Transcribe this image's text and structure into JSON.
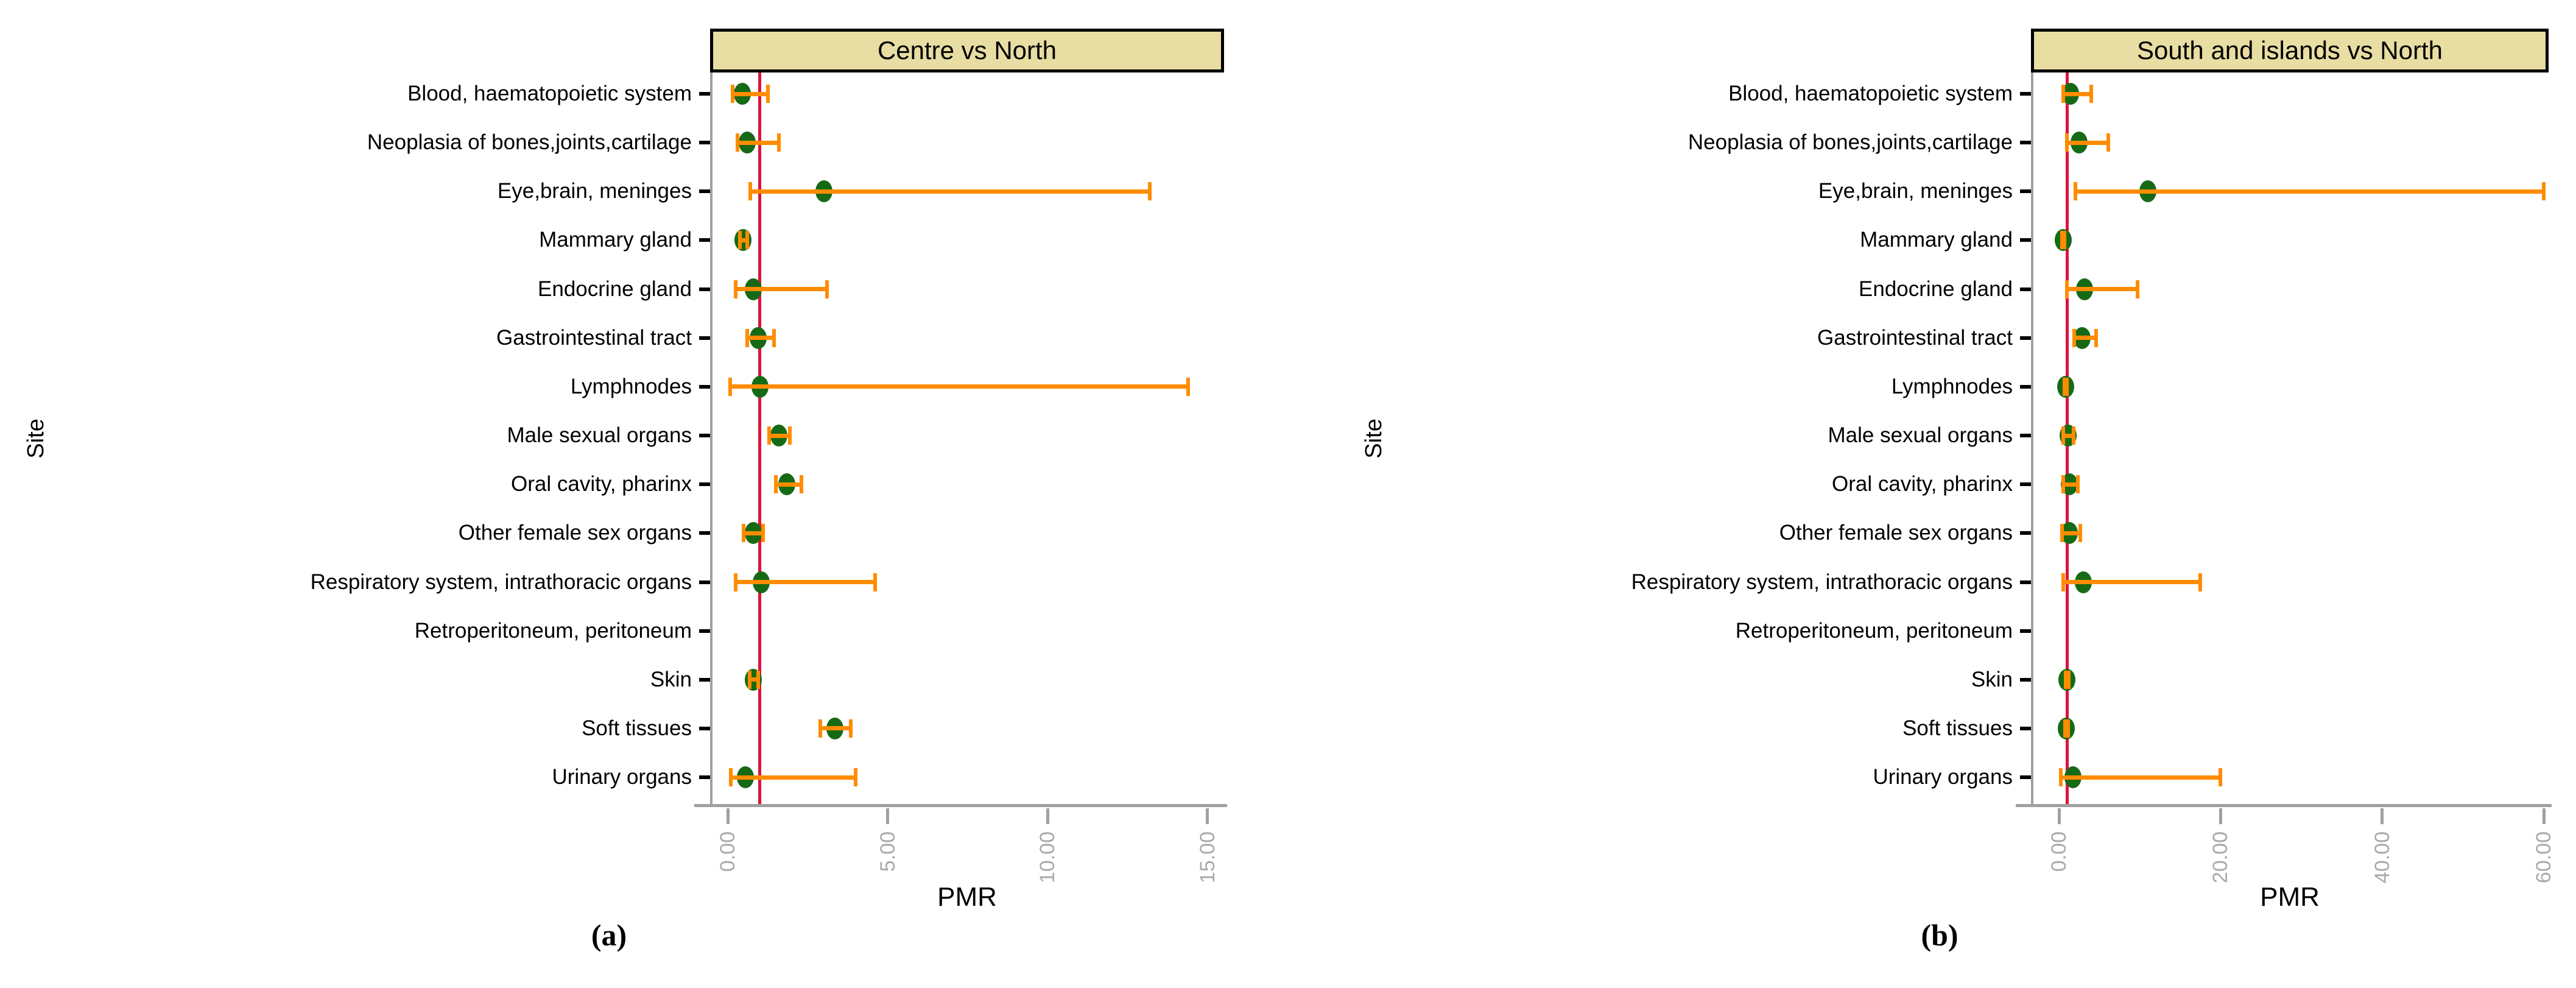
{
  "figure": {
    "x_axis_label": "PMR",
    "y_axis_label": "Site",
    "caption_a": "(a)",
    "caption_b": "(b)"
  },
  "colors": {
    "title_box_fill": "#e8dda2",
    "title_box_border": "#000000",
    "point_marker": "#166a16",
    "error_bar": "#ff8c00",
    "reference_line": "#dc143c",
    "axis_line": "#a0a0a0",
    "tick_label": "#a9a9a9",
    "text": "#000000"
  },
  "chart_data": [
    {
      "type": "scatter",
      "title": "Centre vs North",
      "caption": "(a)",
      "xlabel": "PMR",
      "ylabel": "Site",
      "xlim": [
        0,
        16
      ],
      "x_ticks": [
        0,
        5,
        10,
        15
      ],
      "x_tick_labels": [
        "0.00",
        "5.00",
        "10.00",
        "15.00"
      ],
      "refline_x": 1.0,
      "grid": false,
      "legend": null,
      "points": [
        {
          "site": "Blood, haematopoietic system",
          "pmr": 0.45,
          "ci_low": 0.15,
          "ci_high": 1.25
        },
        {
          "site": "Neoplasia of bones,joints,cartilage",
          "pmr": 0.6,
          "ci_low": 0.3,
          "ci_high": 1.6
        },
        {
          "site": "Eye,brain, meninges",
          "pmr": 3.0,
          "ci_low": 0.7,
          "ci_high": 13.2
        },
        {
          "site": "Mammary gland",
          "pmr": 0.48,
          "ci_low": 0.38,
          "ci_high": 0.6
        },
        {
          "site": "Endocrine gland",
          "pmr": 0.8,
          "ci_low": 0.25,
          "ci_high": 3.1
        },
        {
          "site": "Gastrointestinal tract",
          "pmr": 0.95,
          "ci_low": 0.6,
          "ci_high": 1.45
        },
        {
          "site": "Lymphnodes",
          "pmr": 1.0,
          "ci_low": 0.08,
          "ci_high": 14.4
        },
        {
          "site": "Male sexual organs",
          "pmr": 1.6,
          "ci_low": 1.3,
          "ci_high": 1.95
        },
        {
          "site": "Oral cavity, pharinx",
          "pmr": 1.85,
          "ci_low": 1.5,
          "ci_high": 2.3
        },
        {
          "site": "Other female sex organs",
          "pmr": 0.8,
          "ci_low": 0.5,
          "ci_high": 1.1
        },
        {
          "site": "Respiratory system, intrathoracic organs",
          "pmr": 1.05,
          "ci_low": 0.25,
          "ci_high": 4.6
        },
        {
          "site": "Retroperitoneum, peritoneum",
          "pmr": null,
          "ci_low": null,
          "ci_high": null
        },
        {
          "site": "Skin",
          "pmr": 0.8,
          "ci_low": 0.68,
          "ci_high": 0.95
        },
        {
          "site": "Soft tissues",
          "pmr": 3.35,
          "ci_low": 2.9,
          "ci_high": 3.85
        },
        {
          "site": "Urinary organs",
          "pmr": 0.55,
          "ci_low": 0.1,
          "ci_high": 4.0
        }
      ]
    },
    {
      "type": "scatter",
      "title": "South and islands vs North",
      "caption": "(b)",
      "xlabel": "PMR",
      "ylabel": "Site",
      "xlim": [
        0,
        64
      ],
      "x_ticks": [
        0,
        20,
        40,
        60
      ],
      "x_tick_labels": [
        "0.00",
        "20.00",
        "40.00",
        "60.00"
      ],
      "refline_x": 1.0,
      "grid": false,
      "legend": null,
      "points": [
        {
          "site": "Blood, haematopoietic system",
          "pmr": 1.4,
          "ci_low": 0.5,
          "ci_high": 4.0
        },
        {
          "site": "Neoplasia of bones,joints,cartilage",
          "pmr": 2.5,
          "ci_low": 1.0,
          "ci_high": 6.1
        },
        {
          "site": "Eye,brain, meninges",
          "pmr": 11.0,
          "ci_low": 2.0,
          "ci_high": 60.0
        },
        {
          "site": "Mammary gland",
          "pmr": 0.5,
          "ci_low": 0.35,
          "ci_high": 0.7
        },
        {
          "site": "Endocrine gland",
          "pmr": 3.2,
          "ci_low": 1.0,
          "ci_high": 9.7
        },
        {
          "site": "Gastrointestinal tract",
          "pmr": 2.9,
          "ci_low": 1.9,
          "ci_high": 4.6
        },
        {
          "site": "Lymphnodes",
          "pmr": 0.8,
          "ci_low": 0.65,
          "ci_high": 1.0
        },
        {
          "site": "Male sexual organs",
          "pmr": 1.1,
          "ci_low": 0.5,
          "ci_high": 1.8
        },
        {
          "site": "Oral cavity, pharinx",
          "pmr": 1.3,
          "ci_low": 0.5,
          "ci_high": 2.3
        },
        {
          "site": "Other female sex organs",
          "pmr": 1.3,
          "ci_low": 0.4,
          "ci_high": 2.6
        },
        {
          "site": "Respiratory system, intrathoracic organs",
          "pmr": 3.0,
          "ci_low": 0.5,
          "ci_high": 17.5
        },
        {
          "site": "Retroperitoneum, peritoneum",
          "pmr": null,
          "ci_low": null,
          "ci_high": null
        },
        {
          "site": "Skin",
          "pmr": 1.0,
          "ci_low": 0.8,
          "ci_high": 1.2
        },
        {
          "site": "Soft tissues",
          "pmr": 0.9,
          "ci_low": 0.75,
          "ci_high": 1.1
        },
        {
          "site": "Urinary organs",
          "pmr": 1.7,
          "ci_low": 0.25,
          "ci_high": 20.0
        }
      ]
    }
  ]
}
